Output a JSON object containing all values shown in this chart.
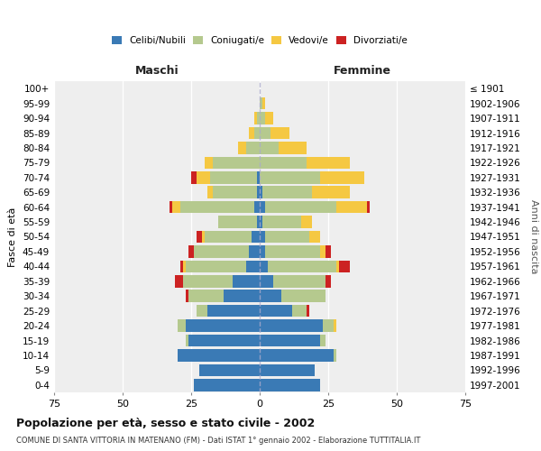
{
  "age_groups": [
    "0-4",
    "5-9",
    "10-14",
    "15-19",
    "20-24",
    "25-29",
    "30-34",
    "35-39",
    "40-44",
    "45-49",
    "50-54",
    "55-59",
    "60-64",
    "65-69",
    "70-74",
    "75-79",
    "80-84",
    "85-89",
    "90-94",
    "95-99",
    "100+"
  ],
  "birth_years": [
    "1997-2001",
    "1992-1996",
    "1987-1991",
    "1982-1986",
    "1977-1981",
    "1972-1976",
    "1967-1971",
    "1962-1966",
    "1957-1961",
    "1952-1956",
    "1947-1951",
    "1942-1946",
    "1937-1941",
    "1932-1936",
    "1927-1931",
    "1922-1926",
    "1917-1921",
    "1912-1916",
    "1907-1911",
    "1902-1906",
    "≤ 1901"
  ],
  "males": {
    "celibi": [
      24,
      22,
      30,
      26,
      27,
      19,
      13,
      10,
      5,
      4,
      3,
      1,
      2,
      1,
      1,
      0,
      0,
      0,
      0,
      0,
      0
    ],
    "coniugati": [
      0,
      0,
      0,
      1,
      3,
      4,
      13,
      18,
      22,
      20,
      17,
      14,
      27,
      16,
      17,
      17,
      5,
      2,
      1,
      0,
      0
    ],
    "vedovi": [
      0,
      0,
      0,
      0,
      0,
      0,
      0,
      0,
      1,
      0,
      1,
      0,
      3,
      2,
      5,
      3,
      3,
      2,
      1,
      0,
      0
    ],
    "divorziati": [
      0,
      0,
      0,
      0,
      0,
      0,
      1,
      3,
      1,
      2,
      2,
      0,
      1,
      0,
      2,
      0,
      0,
      0,
      0,
      0,
      0
    ]
  },
  "females": {
    "nubili": [
      22,
      20,
      27,
      22,
      23,
      12,
      8,
      5,
      3,
      2,
      2,
      1,
      2,
      1,
      0,
      0,
      0,
      0,
      0,
      0,
      0
    ],
    "coniugate": [
      0,
      0,
      1,
      2,
      4,
      5,
      16,
      19,
      25,
      20,
      16,
      14,
      26,
      18,
      22,
      17,
      7,
      4,
      2,
      1,
      0
    ],
    "vedove": [
      0,
      0,
      0,
      0,
      1,
      0,
      0,
      0,
      1,
      2,
      4,
      4,
      11,
      14,
      16,
      16,
      10,
      7,
      3,
      1,
      0
    ],
    "divorziate": [
      0,
      0,
      0,
      0,
      0,
      1,
      0,
      2,
      4,
      2,
      0,
      0,
      1,
      0,
      0,
      0,
      0,
      0,
      0,
      0,
      0
    ]
  },
  "colors": {
    "celibi": "#3a7ab5",
    "coniugati": "#b5c98e",
    "vedovi": "#f5c842",
    "divorziati": "#cc2222"
  },
  "xlim": 75,
  "title": "Popolazione per età, sesso e stato civile - 2002",
  "subtitle": "COMUNE DI SANTA VITTORIA IN MATENANO (FM) - Dati ISTAT 1° gennaio 2002 - Elaborazione TUTTITALIA.IT",
  "ylabel": "Fasce di età",
  "ylabel_right": "Anni di nascita",
  "xlabel_maschi": "Maschi",
  "xlabel_femmine": "Femmine",
  "background_color": "#ffffff",
  "plot_bg_color": "#eeeeee"
}
